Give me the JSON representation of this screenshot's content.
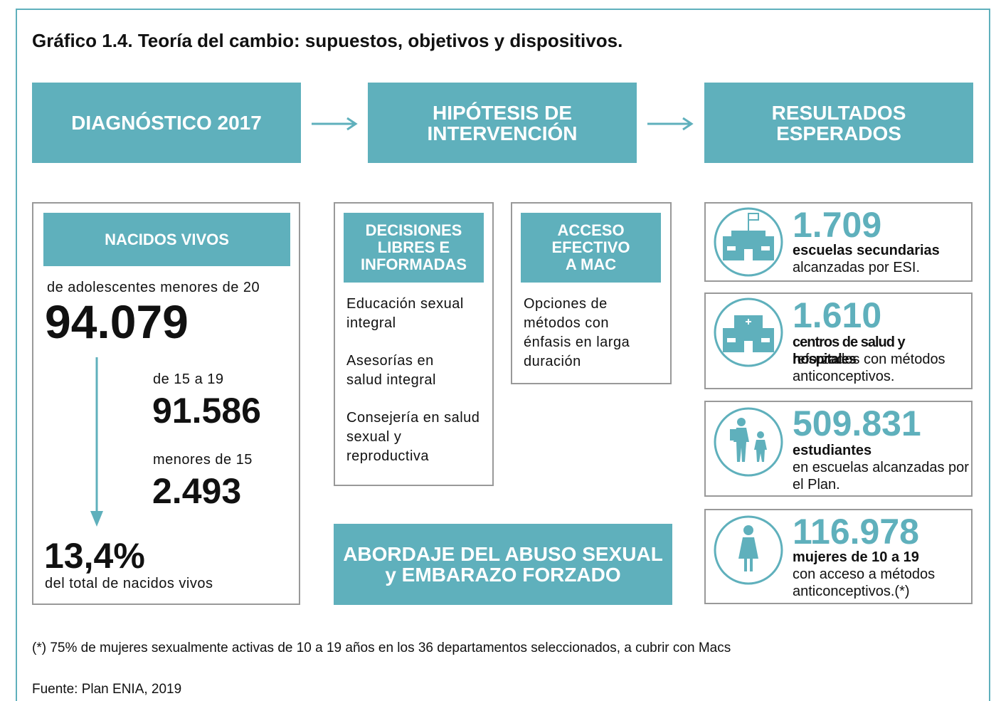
{
  "title": "Gráfico 1.4. Teoría del cambio: supuestos, objetivos y dispositivos.",
  "headers": [
    "DIAGNÓSTICO 2017",
    "HIPÓTESIS DE INTERVENCIÓN",
    "RESULTADOS ESPERADOS"
  ],
  "diagnosis": {
    "heading": "NACIDOS VIVOS",
    "subtitle": "de adolescentes menores de 20",
    "total": "94.079",
    "groups": [
      {
        "label": "de 15 a 19",
        "value": "91.586"
      },
      {
        "label": "menores de 15",
        "value": "2.493"
      }
    ],
    "share": "13,4%",
    "share_label": "del total de nacidos vivos"
  },
  "hypotheses": [
    {
      "heading": "DECISIONES LIBRES E INFORMADAS",
      "items": [
        "Educación sexual integral",
        "Asesorías en salud integral",
        "Consejería en salud sexual y reproductiva"
      ]
    },
    {
      "heading": "ACCESO EFECTIVO A MAC",
      "items": [
        "Opciones de métodos con énfasis en larga duración"
      ]
    }
  ],
  "hypothesis_footer": "ABORDAJE DEL ABUSO SEXUAL y EMBARAZO FORZADO",
  "results": [
    {
      "value": "1.709",
      "label": "escuelas secundarias",
      "detail": "alcanzadas por ESI."
    },
    {
      "value": "1.610",
      "label": "centros de salud y hospitales",
      "detail": "reforzados con métodos anticonceptivos."
    },
    {
      "value": "509.831",
      "label": "estudiantes",
      "detail": "en escuelas alcanzadas por el Plan."
    },
    {
      "value": "116.978",
      "label": "mujeres de 10 a 19",
      "detail": "con acceso a métodos anticonceptivos.(*)"
    }
  ],
  "footnote": "(*) 75% de mujeres sexualmente activas de 10 a 19 años en los 36 departamentos seleccionados, a cubrir con Macs",
  "source": "Fuente: Plan ENIA, 2019"
}
